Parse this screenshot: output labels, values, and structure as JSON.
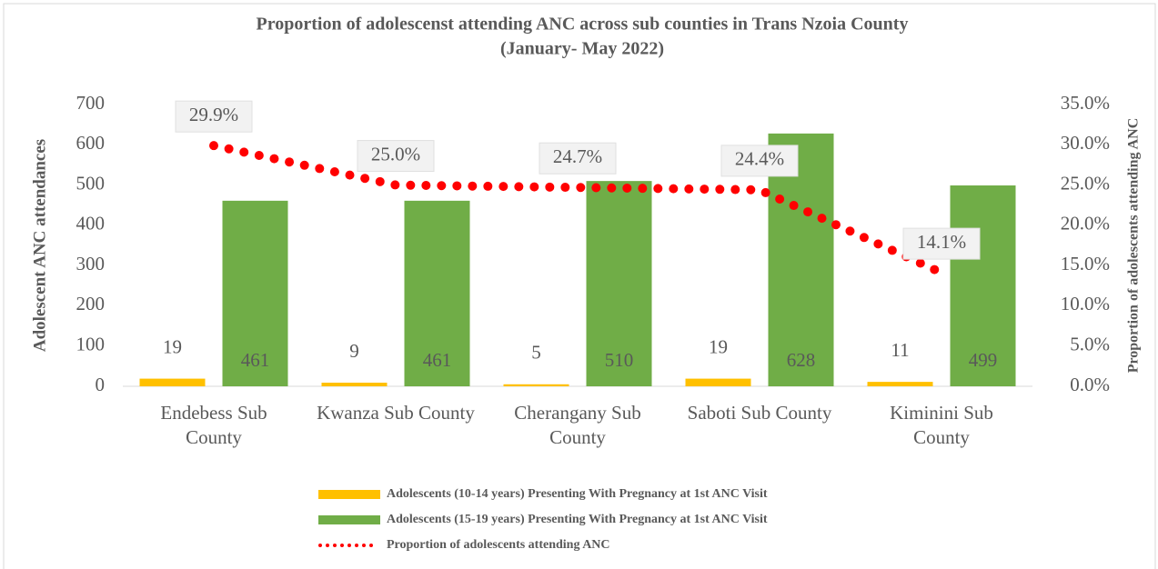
{
  "chart_data": {
    "type": "bar",
    "title": "Proportion of adolescenst attending ANC across sub counties in Trans Nzoia County",
    "subtitle": "(January- May 2022)",
    "y_label": "Adolescent ANC attendances",
    "y2_label": "Proportion of adolescents attending ANC",
    "categories": [
      "Endebess Sub County",
      "Kwanza Sub County",
      "Cherangany Sub County",
      "Saboti Sub County",
      "Kiminini Sub County"
    ],
    "series": [
      {
        "name": "Adolescents (10-14 years) Presenting With Pregnancy at 1st ANC Visit",
        "color": "#ffc000",
        "type": "bar",
        "values": [
          19,
          9,
          5,
          19,
          11
        ]
      },
      {
        "name": "Adolescents (15-19 years) Presenting With Pregnancy at 1st ANC Visit",
        "color": "#70ad47",
        "type": "bar",
        "values": [
          461,
          461,
          510,
          628,
          499
        ]
      },
      {
        "name": "Proportion of adolescents attending ANC",
        "color": "#ff0000",
        "type": "line",
        "axis": "y2",
        "values": [
          29.9,
          25.0,
          24.7,
          24.4,
          14.1
        ],
        "value_labels": [
          "29.9%",
          "25.0%",
          "24.7%",
          "24.4%",
          "14.1%"
        ]
      }
    ],
    "ylim": [
      0,
      700
    ],
    "yticks": [
      0,
      100,
      200,
      300,
      400,
      500,
      600,
      700
    ],
    "y2lim": [
      0,
      35
    ],
    "y2ticks": [
      {
        "value": 0,
        "label": "0.0%"
      },
      {
        "value": 5,
        "label": "5.0%"
      },
      {
        "value": 10,
        "label": "10.0%"
      },
      {
        "value": 15,
        "label": "15.0%"
      },
      {
        "value": 20,
        "label": "20.0%"
      },
      {
        "value": 25,
        "label": "25.0%"
      },
      {
        "value": 30,
        "label": "30.0%"
      },
      {
        "value": 35,
        "label": "35.0%"
      }
    ],
    "legend": "bottom"
  }
}
